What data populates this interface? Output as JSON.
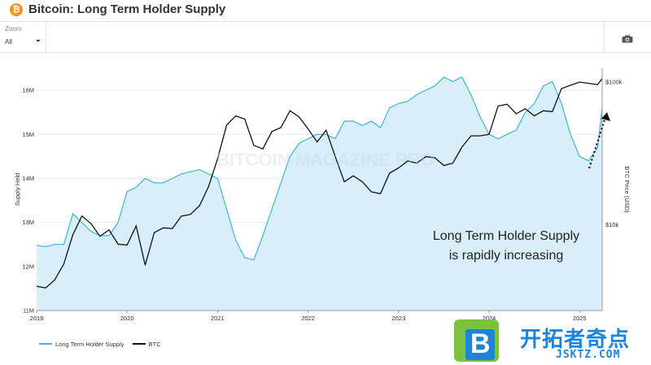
{
  "header": {
    "logo_glyph": "₿",
    "title": "Bitcoin: Long Term Holder Supply"
  },
  "toolbar": {
    "zoom_label": "Zoom",
    "zoom_value": "All",
    "zoom_caret": "⏷",
    "camera_icon": "camera-icon"
  },
  "colors": {
    "lth_line": "#3fb5d6",
    "lth_fill": "#d8eef8",
    "btc_line": "#111111",
    "axis_text": "#333333",
    "annotation_text": "#222222",
    "watermark_blue": "#1d84dc",
    "watermark_green": "#7cc242"
  },
  "chart_data": {
    "type": "line",
    "title": "Bitcoin: Long Term Holder Supply",
    "ylabel": "Supply Held",
    "y2label": "BTC Price (USD)",
    "x_ticks": [
      "2019",
      "2020",
      "2021",
      "2022",
      "2023",
      "2024",
      "2025"
    ],
    "y_ticks": [
      "11M",
      "12M",
      "13M",
      "14M",
      "15M",
      "16M"
    ],
    "y2_ticks": [
      "$10k",
      "$100k"
    ],
    "ylim": [
      11,
      16.5
    ],
    "y2_scale": "log",
    "grid": true,
    "legend_placement": "bottom-left",
    "series": [
      {
        "name": "Long Term Holder Supply",
        "unit": "M BTC",
        "x": [
          2019.0,
          2019.1,
          2019.2,
          2019.3,
          2019.4,
          2019.45,
          2019.5,
          2019.6,
          2019.7,
          2019.8,
          2019.9,
          2020.0,
          2020.1,
          2020.2,
          2020.3,
          2020.4,
          2020.5,
          2020.6,
          2020.7,
          2020.8,
          2020.9,
          2021.0,
          2021.1,
          2021.2,
          2021.3,
          2021.4,
          2021.5,
          2021.6,
          2021.7,
          2021.8,
          2021.9,
          2022.0,
          2022.1,
          2022.2,
          2022.3,
          2022.4,
          2022.5,
          2022.6,
          2022.7,
          2022.8,
          2022.9,
          2023.0,
          2023.1,
          2023.2,
          2023.3,
          2023.4,
          2023.5,
          2023.6,
          2023.7,
          2023.8,
          2023.9,
          2024.0,
          2024.1,
          2024.2,
          2024.3,
          2024.4,
          2024.5,
          2024.6,
          2024.7,
          2024.8,
          2024.9,
          2025.0,
          2025.1,
          2025.2,
          2025.25
        ],
        "values": [
          12.48,
          12.45,
          12.5,
          12.5,
          13.2,
          13.1,
          13.0,
          12.8,
          12.7,
          12.7,
          13.0,
          13.7,
          13.8,
          14.0,
          13.9,
          13.9,
          14.0,
          14.1,
          14.15,
          14.2,
          14.1,
          14.0,
          13.3,
          12.6,
          12.2,
          12.15,
          12.7,
          13.3,
          13.9,
          14.5,
          14.8,
          14.9,
          15.0,
          15.0,
          14.9,
          15.3,
          15.3,
          15.2,
          15.3,
          15.15,
          15.6,
          15.7,
          15.75,
          15.9,
          16.0,
          16.1,
          16.3,
          16.2,
          16.3,
          15.9,
          15.4,
          15.0,
          14.9,
          15.0,
          15.1,
          15.5,
          15.7,
          16.1,
          16.2,
          15.7,
          15.0,
          14.5,
          14.4,
          14.7,
          15.6
        ]
      },
      {
        "name": "BTC",
        "unit": "USD",
        "x": [
          2019.0,
          2019.1,
          2019.2,
          2019.3,
          2019.4,
          2019.5,
          2019.6,
          2019.7,
          2019.8,
          2019.9,
          2020.0,
          2020.1,
          2020.2,
          2020.3,
          2020.4,
          2020.5,
          2020.6,
          2020.7,
          2020.8,
          2020.9,
          2021.0,
          2021.1,
          2021.2,
          2021.3,
          2021.4,
          2021.5,
          2021.6,
          2021.7,
          2021.8,
          2021.9,
          2022.0,
          2022.1,
          2022.2,
          2022.3,
          2022.4,
          2022.5,
          2022.6,
          2022.7,
          2022.8,
          2022.9,
          2023.0,
          2023.1,
          2023.2,
          2023.3,
          2023.4,
          2023.5,
          2023.6,
          2023.7,
          2023.8,
          2023.9,
          2024.0,
          2024.1,
          2024.2,
          2024.3,
          2024.4,
          2024.5,
          2024.6,
          2024.7,
          2024.8,
          2024.9,
          2025.0,
          2025.1,
          2025.2,
          2025.25
        ],
        "values": [
          3700,
          3600,
          4100,
          5300,
          8500,
          11500,
          10200,
          8300,
          9200,
          7300,
          7200,
          9800,
          5200,
          8800,
          9500,
          9400,
          11500,
          11800,
          13600,
          18500,
          29000,
          50000,
          58000,
          55000,
          36000,
          34000,
          45000,
          48000,
          63000,
          57000,
          47000,
          38000,
          46000,
          30000,
          20000,
          22000,
          20000,
          17000,
          16500,
          23000,
          25000,
          28000,
          27000,
          30000,
          29500,
          26000,
          27000,
          35000,
          42000,
          42000,
          43000,
          68000,
          70000,
          60000,
          65000,
          58000,
          63000,
          62000,
          90000,
          95000,
          100000,
          98000,
          96000,
          106000
        ]
      }
    ],
    "annotations": [
      "Long Term Holder Supply",
      "is rapidly increasing"
    ]
  },
  "background_watermark": "BITCOIN MAGAZINE PRO",
  "corner_watermark": {
    "letter": "B",
    "chinese": "开拓者奇点",
    "url": "JSKTZ.COM"
  }
}
